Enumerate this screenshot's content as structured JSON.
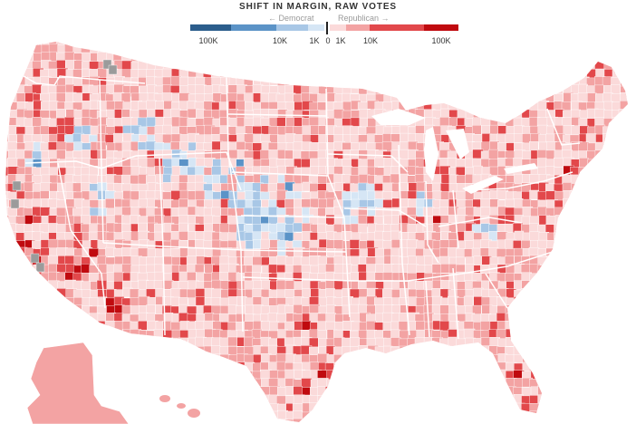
{
  "legend": {
    "title": "SHIFT IN MARGIN, RAW VOTES",
    "dem_label": "← Democrat",
    "rep_label": "Republican →",
    "ticks": [
      "100K",
      "10K",
      "1K",
      "0",
      "1K",
      "10K",
      "100K"
    ]
  },
  "colors": {
    "dem_strong": "#2b5d8c",
    "dem_mid": "#5b93c7",
    "dem_light": "#a8c7e6",
    "dem_pale": "#d6e6f5",
    "rep_pale": "#fbdada",
    "rep_light": "#f3a3a3",
    "rep_mid": "#e2484b",
    "rep_strong": "#c00a0f",
    "no_data": "#9b9b9b",
    "border": "#ffffff"
  }
}
